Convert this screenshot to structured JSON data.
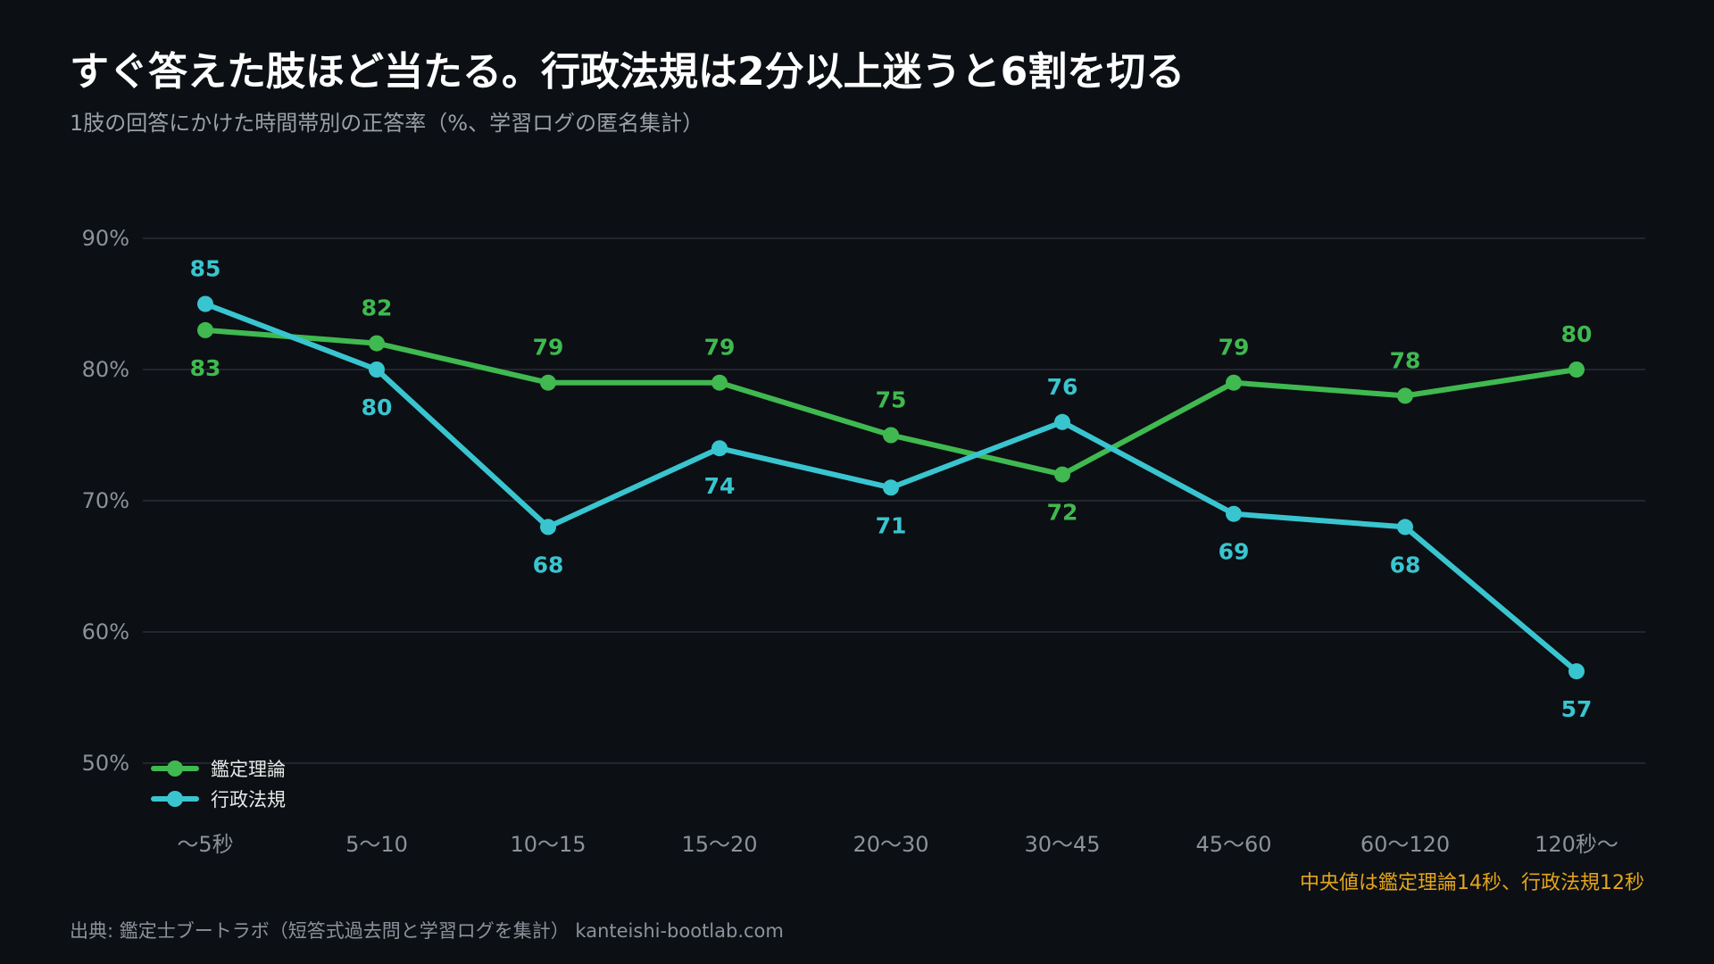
{
  "header": {
    "title": "すぐ答えた肢ほど当たる。行政法規は2分以上迷うと6割を切る",
    "subtitle": "1肢の回答にかけた時間帯別の正答率（%、学習ログの匿名集計）"
  },
  "chart_data": {
    "type": "line",
    "categories": [
      "〜5秒",
      "5〜10",
      "10〜15",
      "15〜20",
      "20〜30",
      "30〜45",
      "45〜60",
      "60〜120",
      "120秒〜"
    ],
    "series": [
      {
        "name": "鑑定理論",
        "color": "#3fb950",
        "values": [
          83,
          82,
          79,
          79,
          75,
          72,
          79,
          78,
          80
        ]
      },
      {
        "name": "行政法規",
        "color": "#39c5cf",
        "values": [
          85,
          80,
          68,
          74,
          71,
          76,
          69,
          68,
          57
        ]
      }
    ],
    "ylim": [
      50,
      90
    ],
    "yticks": [
      90,
      80,
      70,
      60,
      50
    ],
    "ytick_labels": [
      "90%",
      "80%",
      "70%",
      "60%",
      "50%"
    ],
    "grid": true,
    "legend_position": "bottom-left",
    "annotation": "中央値は鑑定理論14秒、行政法規12秒"
  },
  "colors": {
    "annotation": "#e3a51c",
    "background": "#0c0f14"
  },
  "footer": {
    "source": "出典: 鑑定士ブートラボ（短答式過去問と学習ログを集計） kanteishi-bootlab.com"
  }
}
